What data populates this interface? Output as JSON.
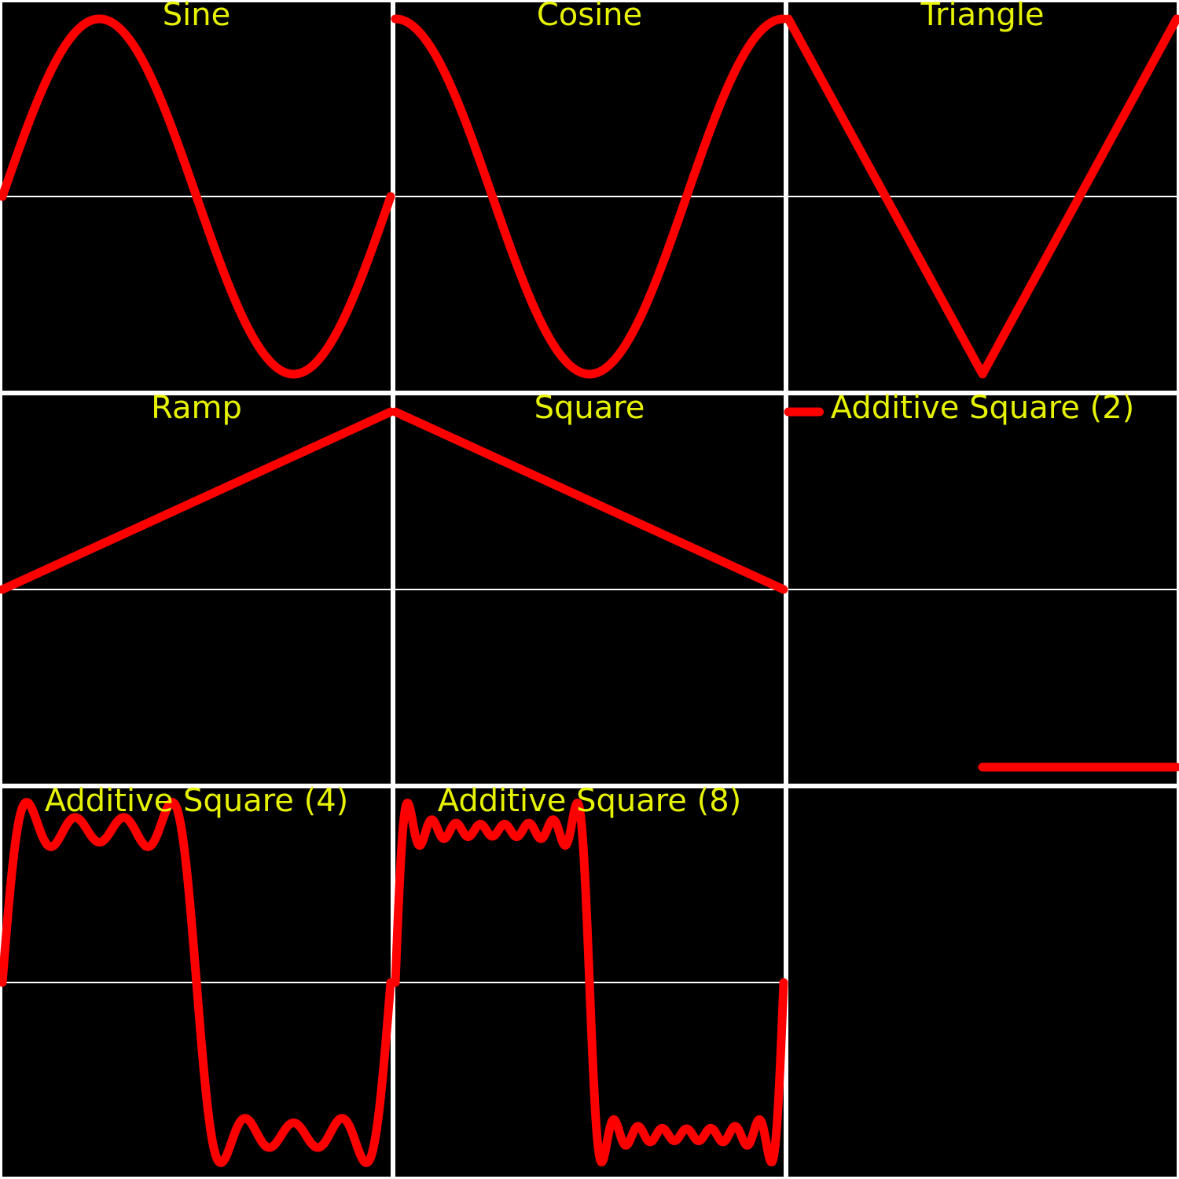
{
  "colors": {
    "background": "#000000",
    "border": "#ffffff",
    "axis": "#ffffff",
    "wave": "#ff0000",
    "title": "#e6f200"
  },
  "chart_data": [
    {
      "type": "line",
      "title": "Sine",
      "function": "sine",
      "x": [
        0,
        1
      ],
      "ylim": [
        -1,
        1
      ],
      "grid": false
    },
    {
      "type": "line",
      "title": "Cosine",
      "function": "cosine",
      "x": [
        0,
        1
      ],
      "ylim": [
        -1,
        1
      ],
      "grid": false
    },
    {
      "type": "line",
      "title": "Triangle",
      "function": "triangle",
      "x": [
        0,
        0.5,
        1
      ],
      "y": [
        1,
        -1,
        1
      ],
      "ylim": [
        -1,
        1
      ],
      "grid": false
    },
    {
      "type": "line",
      "title": "Ramp",
      "function": "ramp",
      "x": [
        0,
        1
      ],
      "y": [
        0,
        1
      ],
      "ylim": [
        -1,
        1
      ],
      "grid": false
    },
    {
      "type": "line",
      "title": "Square",
      "function": "linear",
      "x": [
        0,
        1
      ],
      "y": [
        1,
        0
      ],
      "ylim": [
        -1,
        1
      ],
      "grid": false
    },
    {
      "type": "line",
      "title": "Additive Square (2)",
      "function": "step",
      "segments": [
        {
          "x": [
            0,
            0.08
          ],
          "y": [
            1,
            1
          ]
        },
        {
          "x": [
            0.5,
            1
          ],
          "y": [
            -1,
            -1
          ]
        }
      ],
      "ylim": [
        -1,
        1
      ],
      "grid": false
    },
    {
      "type": "line",
      "title": "Additive Square (4)",
      "function": "additive_square",
      "harmonics": 4,
      "ylim": [
        -1,
        1
      ],
      "grid": false
    },
    {
      "type": "line",
      "title": "Additive Square (8)",
      "function": "additive_square",
      "harmonics": 8,
      "ylim": [
        -1,
        1
      ],
      "grid": false
    },
    {
      "type": "line",
      "title": "",
      "function": "none",
      "ylim": [
        -1,
        1
      ],
      "grid": false
    }
  ]
}
